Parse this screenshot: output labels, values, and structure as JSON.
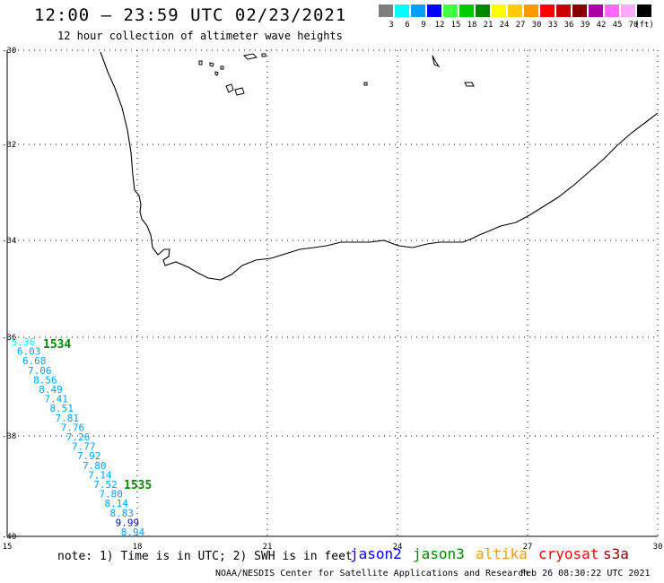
{
  "header": {
    "title": "12:00 – 23:59 UTC 02/23/2021",
    "subtitle": "12 hour collection of altimeter wave heights"
  },
  "legend": {
    "unit": "(ft)",
    "swatches": [
      {
        "color": "#7f7f7f",
        "label": "3"
      },
      {
        "color": "#00ffff",
        "label": "6"
      },
      {
        "color": "#00a0ff",
        "label": "9"
      },
      {
        "color": "#0000ff",
        "label": "12"
      },
      {
        "color": "#40ff40",
        "label": "15"
      },
      {
        "color": "#00cc00",
        "label": "18"
      },
      {
        "color": "#008800",
        "label": "21"
      },
      {
        "color": "#ffff00",
        "label": "24"
      },
      {
        "color": "#ffcc00",
        "label": "27"
      },
      {
        "color": "#ff9900",
        "label": "30"
      },
      {
        "color": "#ff0000",
        "label": "33"
      },
      {
        "color": "#cc0000",
        "label": "36"
      },
      {
        "color": "#880000",
        "label": "39"
      },
      {
        "color": "#aa00aa",
        "label": "42"
      },
      {
        "color": "#ff66ff",
        "label": "45"
      },
      {
        "color": "#ffaaff",
        "label": "70"
      },
      {
        "color": "#000000",
        "label": ""
      }
    ]
  },
  "axes": {
    "lon_ticks": [
      "15",
      "18",
      "21",
      "24",
      "27",
      "30"
    ],
    "lat_ticks": [
      "-30",
      "-32",
      "-34",
      "-36",
      "-38",
      "-40"
    ]
  },
  "track": {
    "passes": [
      {
        "label": "1534",
        "color": "#008800"
      },
      {
        "label": "1535",
        "color": "#008800"
      }
    ],
    "points": [
      {
        "v": "5.36",
        "c": "#00ffff"
      },
      {
        "v": "6.03",
        "c": "#00a0ff"
      },
      {
        "v": "6.68",
        "c": "#00a0ff"
      },
      {
        "v": "7.06",
        "c": "#00a0ff"
      },
      {
        "v": "8.56",
        "c": "#00a0ff"
      },
      {
        "v": "8.49",
        "c": "#00a0ff"
      },
      {
        "v": "7.41",
        "c": "#00a0ff"
      },
      {
        "v": "8.51",
        "c": "#00a0ff"
      },
      {
        "v": "7.81",
        "c": "#00a0ff"
      },
      {
        "v": "7.76",
        "c": "#00a0ff"
      },
      {
        "v": "7.26",
        "c": "#00a0ff"
      },
      {
        "v": "7.77",
        "c": "#00a0ff"
      },
      {
        "v": "7.92",
        "c": "#00a0ff"
      },
      {
        "v": "7.80",
        "c": "#00a0ff"
      },
      {
        "v": "7.14",
        "c": "#00a0ff"
      },
      {
        "v": "7.52",
        "c": "#00a0ff"
      },
      {
        "v": "7.80",
        "c": "#00a0ff"
      },
      {
        "v": "8.14",
        "c": "#00a0ff"
      },
      {
        "v": "8.83",
        "c": "#00a0ff"
      },
      {
        "v": "9.99",
        "c": "#0000ff"
      },
      {
        "v": "8.94",
        "c": "#00a0ff"
      }
    ]
  },
  "footer": {
    "note": "note: 1) Time is in UTC; 2) SWH is in feet",
    "satellites": [
      {
        "name": "jason2",
        "color": "#0000ff"
      },
      {
        "name": "jason3",
        "color": "#008800"
      },
      {
        "name": "altika",
        "color": "#ff9900"
      },
      {
        "name": "cryosat",
        "color": "#ff0000"
      },
      {
        "name": "s3a",
        "color": "#880000"
      }
    ],
    "credit": "NOAA/NESDIS Center for Satellite Applications and Research",
    "timestamp": "Feb 26 08:30:22 UTC 2021"
  }
}
